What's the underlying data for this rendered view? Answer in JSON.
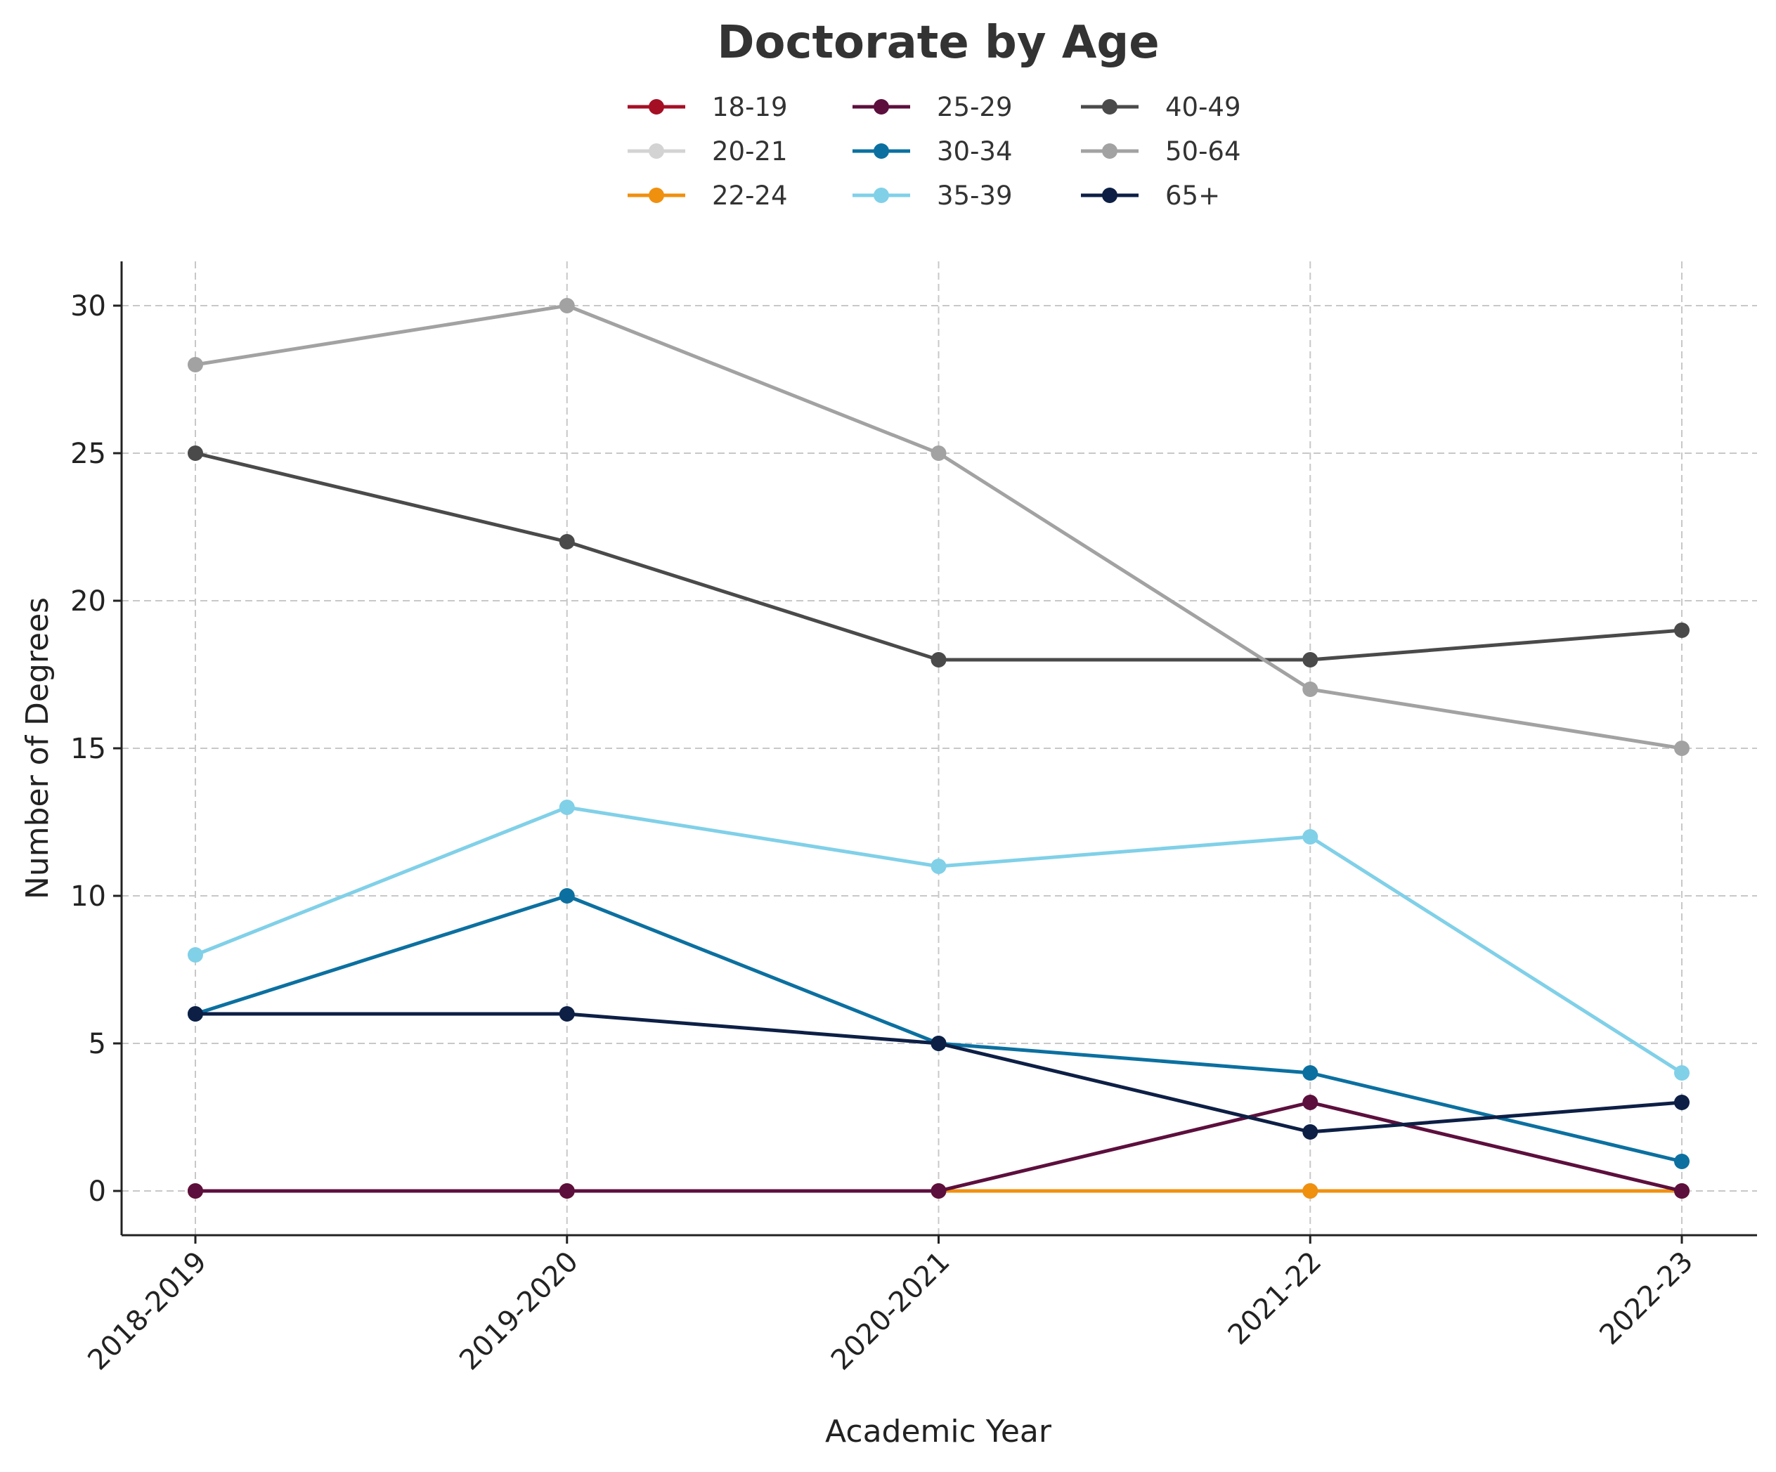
{
  "chart_data": {
    "type": "line",
    "title": "Doctorate by Age",
    "xlabel": "Academic Year",
    "ylabel": "Number of Degrees",
    "categories": [
      "2018-2019",
      "2019-2020",
      "2020-2021",
      "2021-22",
      "2022-23"
    ],
    "ylim": [
      -1.5,
      31.5
    ],
    "yticks": [
      0,
      5,
      10,
      15,
      20,
      25,
      30
    ],
    "grid": true,
    "legend_position": "top-center",
    "series": [
      {
        "name": "18-19",
        "color": "#a50f24",
        "values": [
          0,
          0,
          0,
          0,
          0
        ]
      },
      {
        "name": "20-21",
        "color": "#d3d3d3",
        "values": [
          0,
          0,
          0,
          0,
          0
        ]
      },
      {
        "name": "22-24",
        "color": "#f0900f",
        "values": [
          0,
          0,
          0,
          0,
          0
        ]
      },
      {
        "name": "25-29",
        "color": "#5c0f3d",
        "values": [
          0,
          0,
          0,
          3,
          0
        ]
      },
      {
        "name": "30-34",
        "color": "#0b70a0",
        "values": [
          6,
          10,
          5,
          4,
          1
        ]
      },
      {
        "name": "35-39",
        "color": "#80d0e8",
        "values": [
          8,
          13,
          11,
          12,
          4
        ]
      },
      {
        "name": "40-49",
        "color": "#4a4a4a",
        "values": [
          25,
          22,
          18,
          18,
          19
        ]
      },
      {
        "name": "50-64",
        "color": "#a2a2a2",
        "values": [
          28,
          30,
          25,
          17,
          15
        ]
      },
      {
        "name": "65+",
        "color": "#0d1f45",
        "values": [
          6,
          6,
          5,
          2,
          3
        ]
      }
    ]
  }
}
